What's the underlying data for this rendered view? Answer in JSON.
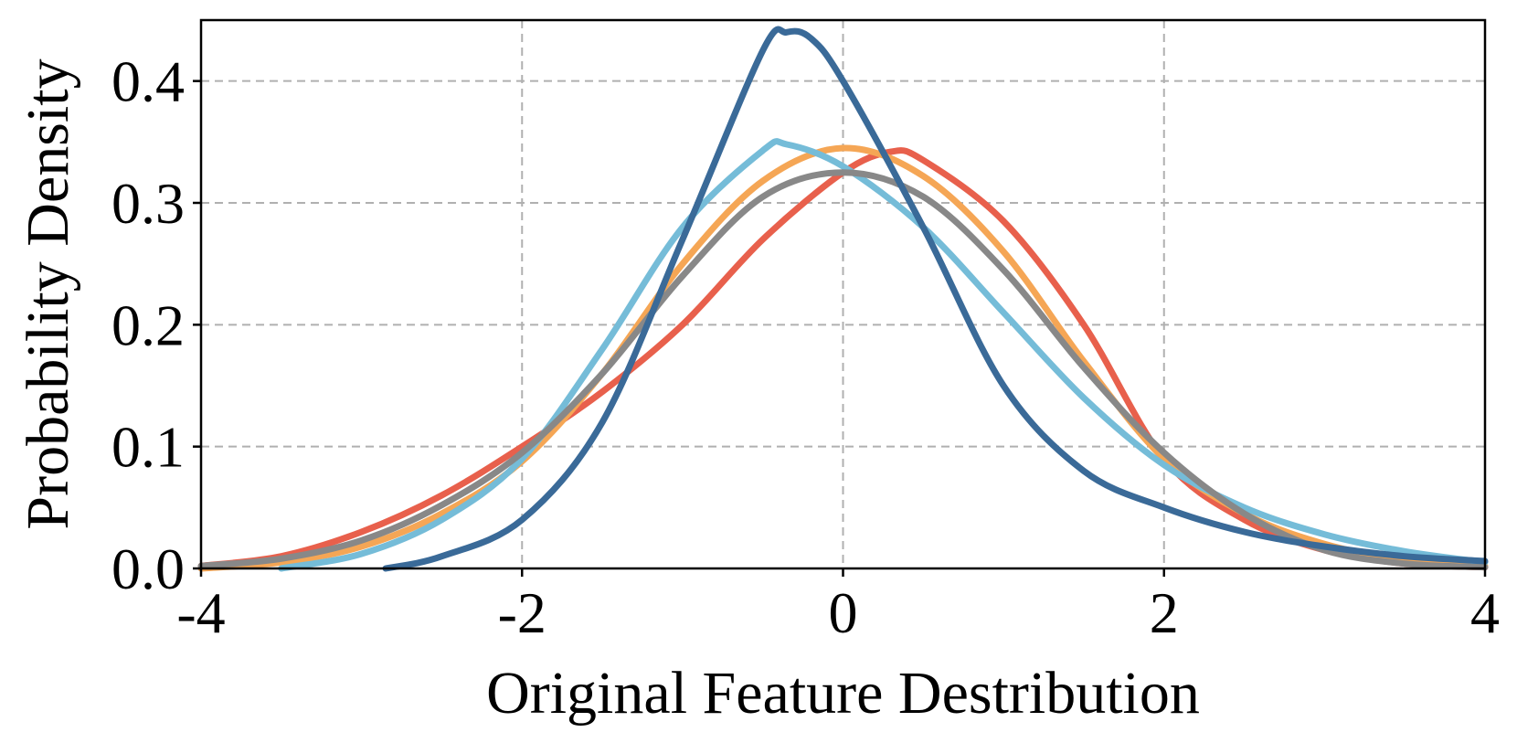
{
  "chart_data": {
    "type": "line",
    "title": "",
    "xlabel": "Original Feature Destribution",
    "ylabel": "Probability Density",
    "xlim": [
      -4,
      4
    ],
    "ylim": [
      0,
      0.45
    ],
    "x_ticks": [
      -4,
      -2,
      0,
      2,
      4
    ],
    "x_tick_labels": [
      "-4",
      "-2",
      "0",
      "2",
      "4"
    ],
    "y_ticks": [
      0.0,
      0.1,
      0.2,
      0.3,
      0.4
    ],
    "y_tick_labels": [
      "0.0",
      "0.1",
      "0.2",
      "0.3",
      "0.4"
    ],
    "grid": true,
    "legend": "none",
    "series": [
      {
        "color": "#e8604c",
        "points": [
          [
            -4,
            0.002
          ],
          [
            -3.5,
            0.01
          ],
          [
            -3,
            0.03
          ],
          [
            -2.5,
            0.06
          ],
          [
            -2,
            0.1
          ],
          [
            -1.5,
            0.145
          ],
          [
            -1,
            0.2
          ],
          [
            -0.5,
            0.27
          ],
          [
            0,
            0.325
          ],
          [
            0.3,
            0.342
          ],
          [
            0.5,
            0.335
          ],
          [
            1,
            0.285
          ],
          [
            1.5,
            0.2
          ],
          [
            2,
            0.09
          ],
          [
            2.5,
            0.04
          ],
          [
            3,
            0.015
          ],
          [
            3.5,
            0.004
          ],
          [
            4,
            0.001
          ]
        ]
      },
      {
        "color": "#f5a655",
        "points": [
          [
            -4,
            0.0
          ],
          [
            -3.5,
            0.005
          ],
          [
            -3,
            0.018
          ],
          [
            -2.5,
            0.045
          ],
          [
            -2,
            0.088
          ],
          [
            -1.5,
            0.16
          ],
          [
            -1,
            0.25
          ],
          [
            -0.5,
            0.318
          ],
          [
            0,
            0.345
          ],
          [
            0.5,
            0.322
          ],
          [
            1,
            0.26
          ],
          [
            1.5,
            0.17
          ],
          [
            2,
            0.09
          ],
          [
            2.5,
            0.045
          ],
          [
            3,
            0.02
          ],
          [
            3.5,
            0.007
          ],
          [
            4,
            0.002
          ]
        ]
      },
      {
        "color": "#75bcd8",
        "points": [
          [
            -3.5,
            0.0
          ],
          [
            -3,
            0.012
          ],
          [
            -2.5,
            0.04
          ],
          [
            -2,
            0.09
          ],
          [
            -1.5,
            0.18
          ],
          [
            -1,
            0.28
          ],
          [
            -0.5,
            0.343
          ],
          [
            -0.35,
            0.348
          ],
          [
            0,
            0.33
          ],
          [
            0.5,
            0.28
          ],
          [
            1,
            0.21
          ],
          [
            1.5,
            0.14
          ],
          [
            2,
            0.085
          ],
          [
            2.5,
            0.05
          ],
          [
            3,
            0.028
          ],
          [
            3.5,
            0.014
          ],
          [
            4,
            0.005
          ]
        ]
      },
      {
        "color": "#888888",
        "points": [
          [
            -4,
            0.002
          ],
          [
            -3.5,
            0.008
          ],
          [
            -3,
            0.023
          ],
          [
            -2.5,
            0.052
          ],
          [
            -2,
            0.095
          ],
          [
            -1.5,
            0.16
          ],
          [
            -1,
            0.24
          ],
          [
            -0.5,
            0.305
          ],
          [
            0,
            0.325
          ],
          [
            0.5,
            0.305
          ],
          [
            1,
            0.245
          ],
          [
            1.5,
            0.165
          ],
          [
            2,
            0.095
          ],
          [
            2.5,
            0.045
          ],
          [
            3,
            0.015
          ],
          [
            3.5,
            0.004
          ],
          [
            4,
            0.001
          ]
        ]
      },
      {
        "color": "#3a6a98",
        "points": [
          [
            -2.85,
            0.0
          ],
          [
            -2.5,
            0.01
          ],
          [
            -2,
            0.04
          ],
          [
            -1.5,
            0.12
          ],
          [
            -1,
            0.27
          ],
          [
            -0.5,
            0.425
          ],
          [
            -0.35,
            0.44
          ],
          [
            -0.2,
            0.435
          ],
          [
            0,
            0.4
          ],
          [
            0.5,
            0.28
          ],
          [
            1,
            0.15
          ],
          [
            1.5,
            0.08
          ],
          [
            2,
            0.05
          ],
          [
            2.5,
            0.03
          ],
          [
            3,
            0.018
          ],
          [
            3.5,
            0.01
          ],
          [
            4,
            0.006
          ]
        ]
      }
    ]
  }
}
